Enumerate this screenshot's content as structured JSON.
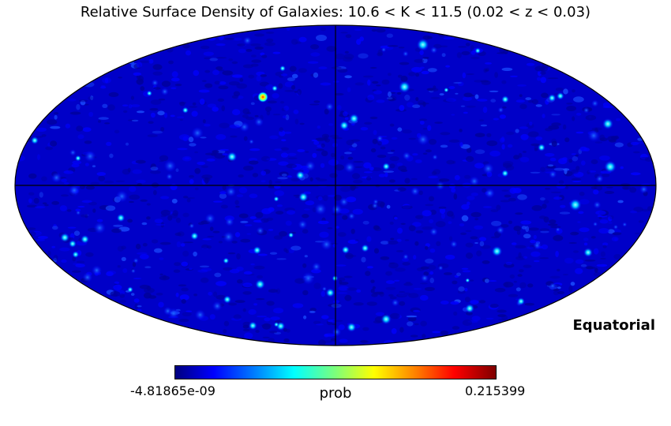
{
  "title": "Relative Surface Density of Galaxies: 10.6 < K < 11.5 (0.02 < z < 0.03)",
  "coordinate_system": "Equatorial",
  "projection": "mollweide",
  "colormap": "jet",
  "colorbar": {
    "min_label": "-4.81865e-09",
    "max_label": "0.215399",
    "unit_label": "prob",
    "min": -4.81865e-09,
    "max": 0.215399
  },
  "background_color": "#0000c8",
  "graticule": [
    "equator",
    "central-meridian"
  ]
}
